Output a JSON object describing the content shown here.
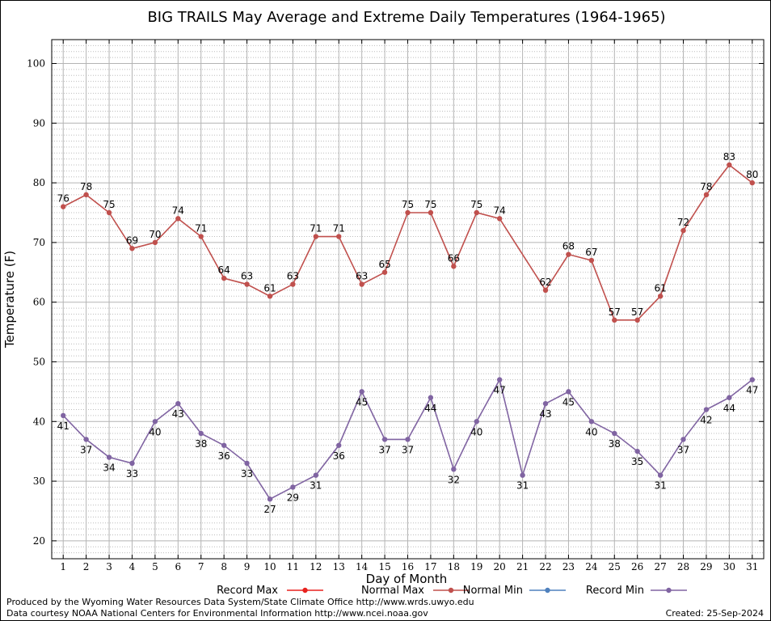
{
  "chart_data": {
    "type": "line",
    "title": "BIG TRAILS May Average and Extreme Daily Temperatures (1964-1965)",
    "xlabel": "Day of Month",
    "ylabel": "Temperature (F)",
    "ylim": [
      17,
      104
    ],
    "xlim": [
      0.5,
      31.5
    ],
    "yticks": [
      20,
      30,
      40,
      50,
      60,
      70,
      80,
      90,
      100
    ],
    "x": [
      1,
      2,
      3,
      4,
      5,
      6,
      7,
      8,
      9,
      10,
      11,
      12,
      13,
      14,
      15,
      16,
      17,
      18,
      19,
      20,
      21,
      22,
      23,
      24,
      25,
      26,
      27,
      28,
      29,
      30,
      31
    ],
    "grid": true,
    "legend_position": "bottom",
    "legend": [
      {
        "name": "Record Max",
        "color": "#e8221f"
      },
      {
        "name": "Normal Max",
        "color": "#c0504d"
      },
      {
        "name": "Normal Min",
        "color": "#4f81bd"
      },
      {
        "name": "Record Min",
        "color": "#8064a2"
      }
    ],
    "series": [
      {
        "name": "Normal Max",
        "color": "#c0504d",
        "values": [
          76,
          78,
          75,
          69,
          70,
          74,
          71,
          64,
          63,
          61,
          63,
          71,
          71,
          63,
          65,
          75,
          75,
          66,
          75,
          74,
          null,
          62,
          68,
          67,
          57,
          57,
          61,
          72,
          78,
          83,
          80
        ],
        "labels": [
          "76",
          "78",
          "75",
          "69",
          "70",
          "74",
          "71",
          "64",
          "63",
          "61",
          "63",
          "71",
          "71",
          "63",
          "65",
          "75",
          "75",
          "66",
          "75",
          "74",
          "",
          "62",
          "68",
          "67",
          "57",
          "57",
          "61",
          "72",
          "78",
          "83",
          "80"
        ]
      },
      {
        "name": "Record Min",
        "color": "#8064a2",
        "values": [
          41,
          37,
          34,
          33,
          40,
          43,
          38,
          36,
          33,
          27,
          29,
          31,
          36,
          45,
          37,
          37,
          44,
          32,
          40,
          47,
          31,
          43,
          45,
          40,
          38,
          35,
          31,
          37,
          42,
          44,
          47
        ],
        "labels": [
          "41",
          "37",
          "34",
          "33",
          "40",
          "43",
          "38",
          "36",
          "33",
          "27",
          "29",
          "31",
          "36",
          "45",
          "37",
          "37",
          "44",
          "32",
          "40",
          "47",
          "31",
          "43",
          "45",
          "40",
          "38",
          "35",
          "31",
          "37",
          "42",
          "44",
          "47"
        ]
      }
    ]
  },
  "footer": {
    "produced_by": "Produced by the Wyoming Water Resources Data System/State Climate Office http://www.wrds.uwyo.edu",
    "data_courtesy": "Data courtesy NOAA National Centers for Environmental Information http://www.ncei.noaa.gov",
    "created": "Created:  25-Sep-2024"
  }
}
